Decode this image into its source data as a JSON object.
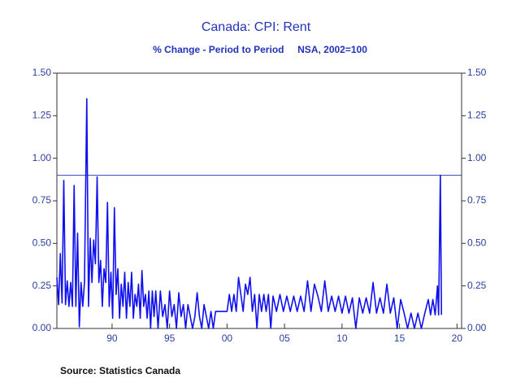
{
  "chart_data": {
    "type": "line",
    "title": "Canada: CPI: Rent",
    "subtitle": "% Change - Period to Period     NSA, 2002=100",
    "source": "Source:  Statistics Canada",
    "xlim": [
      1985.2,
      2020.4
    ],
    "xticks": [
      {
        "value": 1990,
        "label": "90"
      },
      {
        "value": 1995,
        "label": "95"
      },
      {
        "value": 2000,
        "label": "00"
      },
      {
        "value": 2005,
        "label": "05"
      },
      {
        "value": 2010,
        "label": "10"
      },
      {
        "value": 2015,
        "label": "15"
      },
      {
        "value": 2020,
        "label": "20"
      }
    ],
    "ylim": [
      0,
      1.5
    ],
    "yticks": [
      {
        "value": 0,
        "label": "0.00"
      },
      {
        "value": 0.25,
        "label": "0.25"
      },
      {
        "value": 0.5,
        "label": "0.50"
      },
      {
        "value": 0.75,
        "label": "0.75"
      },
      {
        "value": 1,
        "label": "1.00"
      },
      {
        "value": 1.25,
        "label": "1.25"
      },
      {
        "value": 1.5,
        "label": "1.50"
      }
    ],
    "y2lim": [
      0,
      1.5
    ],
    "y2ticks": [
      {
        "value": 0,
        "label": "0.00"
      },
      {
        "value": 0.25,
        "label": "0.25"
      },
      {
        "value": 0.5,
        "label": "0.50"
      },
      {
        "value": 0.75,
        "label": "0.75"
      },
      {
        "value": 1,
        "label": "1.00"
      },
      {
        "value": 1.25,
        "label": "1.25"
      },
      {
        "value": 1.5,
        "label": "1.50"
      }
    ],
    "reference_line": 0.9,
    "reference_color": "#3344bb",
    "color": "#1010ee",
    "x": [
      1985.2,
      1985.35,
      1985.5,
      1985.65,
      1985.8,
      1985.95,
      1986.1,
      1986.25,
      1986.4,
      1986.55,
      1986.7,
      1986.85,
      1987.0,
      1987.15,
      1987.3,
      1987.45,
      1987.6,
      1987.8,
      1987.95,
      1988.1,
      1988.25,
      1988.4,
      1988.55,
      1988.7,
      1988.85,
      1989.0,
      1989.15,
      1989.3,
      1989.45,
      1989.6,
      1989.75,
      1989.9,
      1990.05,
      1990.2,
      1990.35,
      1990.5,
      1990.65,
      1990.8,
      1990.95,
      1991.1,
      1991.25,
      1991.4,
      1991.55,
      1991.7,
      1991.85,
      1992.0,
      1992.15,
      1992.3,
      1992.45,
      1992.6,
      1992.75,
      1992.9,
      1993.05,
      1993.2,
      1993.35,
      1993.5,
      1993.65,
      1993.8,
      1994.0,
      1994.2,
      1994.4,
      1994.6,
      1994.8,
      1995.0,
      1995.2,
      1995.4,
      1995.6,
      1995.8,
      1996.0,
      1996.2,
      1996.4,
      1996.6,
      1996.8,
      1997.0,
      1997.2,
      1997.4,
      1997.6,
      1997.8,
      1998.0,
      1998.2,
      1998.4,
      1998.6,
      1998.8,
      1999.0,
      1999.3,
      1999.6,
      2000.0,
      2000.2,
      2000.4,
      2000.6,
      2000.8,
      2001.0,
      2001.2,
      2001.4,
      2001.6,
      2001.8,
      2002.0,
      2002.2,
      2002.4,
      2002.6,
      2002.8,
      2003.0,
      2003.2,
      2003.4,
      2003.6,
      2003.8,
      2004.0,
      2004.3,
      2004.6,
      2004.9,
      2005.2,
      2005.5,
      2005.8,
      2006.1,
      2006.4,
      2006.7,
      2007.0,
      2007.3,
      2007.6,
      2007.9,
      2008.2,
      2008.5,
      2008.8,
      2009.1,
      2009.4,
      2009.7,
      2010.0,
      2010.3,
      2010.6,
      2010.9,
      2011.2,
      2011.5,
      2011.8,
      2012.1,
      2012.4,
      2012.7,
      2013.0,
      2013.3,
      2013.6,
      2013.9,
      2014.2,
      2014.5,
      2014.8,
      2015.1,
      2015.4,
      2015.7,
      2016.0,
      2016.3,
      2016.6,
      2016.9,
      2017.2,
      2017.5,
      2017.7,
      2017.9,
      2018.1,
      2018.3,
      2018.4,
      2018.55,
      2018.65
    ],
    "values": [
      0.3,
      0.14,
      0.44,
      0.15,
      0.87,
      0.14,
      0.28,
      0.13,
      0.27,
      0.13,
      0.84,
      0.13,
      0.56,
      0.01,
      0.27,
      0.13,
      0.27,
      1.35,
      0.13,
      0.53,
      0.27,
      0.52,
      0.38,
      0.89,
      0.27,
      0.4,
      0.13,
      0.35,
      0.27,
      0.74,
      0.13,
      0.33,
      0.06,
      0.71,
      0.2,
      0.35,
      0.06,
      0.26,
      0.13,
      0.33,
      0.06,
      0.27,
      0.13,
      0.33,
      0.06,
      0.2,
      0.13,
      0.26,
      0.06,
      0.34,
      0.13,
      0.2,
      0.06,
      0.22,
      0.0,
      0.22,
      0.07,
      0.22,
      0.0,
      0.22,
      0.07,
      0.14,
      0.0,
      0.22,
      0.07,
      0.14,
      0.0,
      0.21,
      0.07,
      0.14,
      0.0,
      0.14,
      0.07,
      0.0,
      0.07,
      0.21,
      0.07,
      0.0,
      0.14,
      0.07,
      0.0,
      0.1,
      0.0,
      0.1,
      0.1,
      0.1,
      0.1,
      0.2,
      0.1,
      0.2,
      0.1,
      0.3,
      0.2,
      0.1,
      0.26,
      0.2,
      0.3,
      0.1,
      0.2,
      0.0,
      0.2,
      0.1,
      0.2,
      0.1,
      0.2,
      0.0,
      0.19,
      0.1,
      0.2,
      0.1,
      0.19,
      0.1,
      0.19,
      0.1,
      0.19,
      0.1,
      0.28,
      0.1,
      0.26,
      0.19,
      0.1,
      0.28,
      0.1,
      0.19,
      0.1,
      0.19,
      0.09,
      0.19,
      0.09,
      0.18,
      0.0,
      0.18,
      0.09,
      0.18,
      0.09,
      0.27,
      0.09,
      0.18,
      0.09,
      0.26,
      0.09,
      0.18,
      0.0,
      0.17,
      0.09,
      0.0,
      0.09,
      0.0,
      0.09,
      0.0,
      0.09,
      0.17,
      0.08,
      0.17,
      0.08,
      0.25,
      0.08,
      0.9,
      0.08
    ]
  }
}
